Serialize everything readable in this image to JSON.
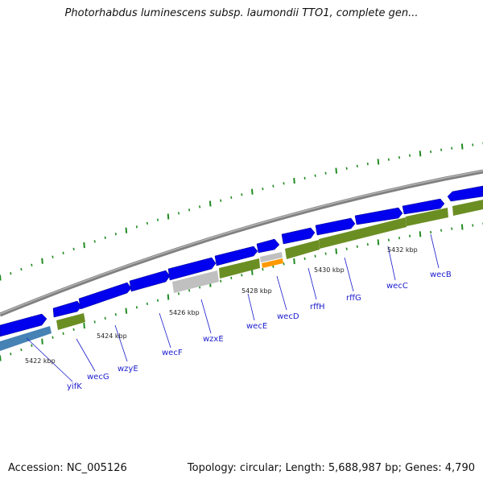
{
  "title": "Photorhabdus luminescens subsp. laumondii TTO1, complete gen...",
  "footer": {
    "accession": "Accession: NC_005126",
    "topology": "Topology: circular; Length: 5,688,987 bp; Genes: 4,790"
  },
  "colors": {
    "backbone": "#888888",
    "cds": "#0000ee",
    "rna": "#6b8e23",
    "other": "#bbbbbb",
    "highlight": "#ff9900",
    "blue_gene": "#4682b4",
    "ticks": "#228b22",
    "label": "#1a1acc"
  },
  "kbp_labels": [
    "5422 kbp",
    "5424 kbp",
    "5426 kbp",
    "5428 kbp",
    "5430 kbp",
    "5432 kbp"
  ],
  "genes": [
    "yifK",
    "wecG",
    "wzyE",
    "wecF",
    "wzxE",
    "wecE",
    "wecD",
    "rffH",
    "rffG",
    "wecC",
    "wecB"
  ]
}
